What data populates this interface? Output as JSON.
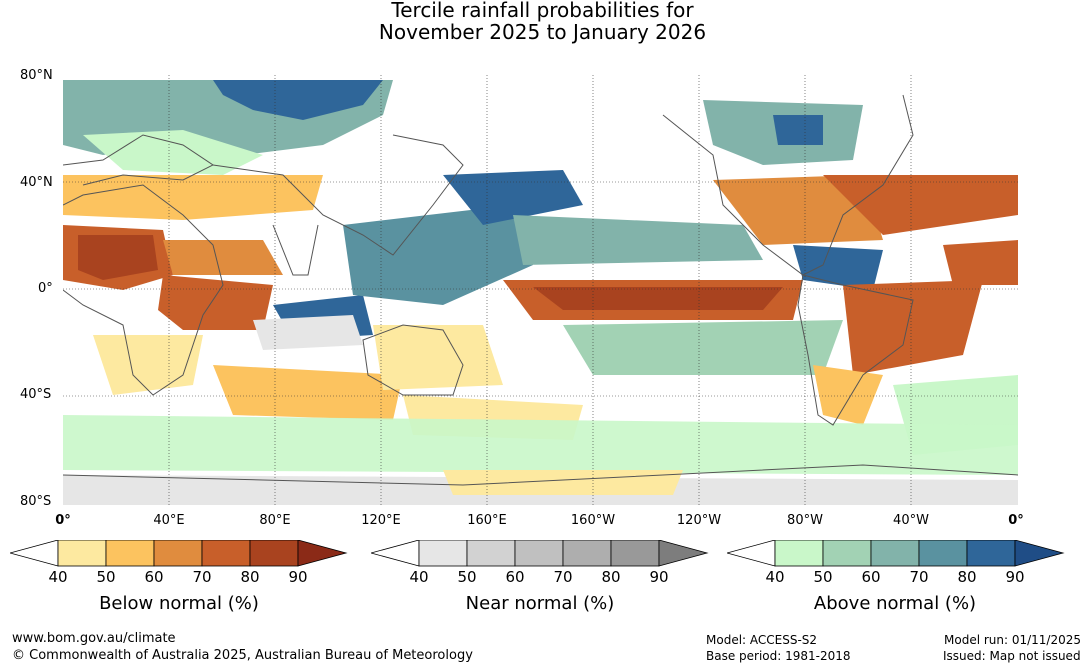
{
  "title": {
    "line1": "Tercile rainfall probabilities for",
    "line2": "November 2025 to January 2026"
  },
  "map": {
    "lat_labels": [
      "80°N",
      "40°N",
      "0°",
      "40°S",
      "80°S"
    ],
    "lon_labels": [
      "0°",
      "40°E",
      "80°E",
      "120°E",
      "160°E",
      "160°W",
      "120°W",
      "80°W",
      "40°W",
      "0°"
    ]
  },
  "colorbars": [
    {
      "title": "Below normal (%)",
      "ticks": [
        "40",
        "50",
        "60",
        "70",
        "80",
        "90"
      ],
      "colors": [
        "#ffffff",
        "#fde9a0",
        "#fcc35f",
        "#e08c3e",
        "#c85f2a",
        "#a9431f",
        "#8b2a17"
      ]
    },
    {
      "title": "Near normal (%)",
      "ticks": [
        "40",
        "50",
        "60",
        "70",
        "80",
        "90"
      ],
      "colors": [
        "#ffffff",
        "#e6e6e6",
        "#d2d2d2",
        "#c0c0c0",
        "#aeaeae",
        "#999999",
        "#7d7d7d"
      ]
    },
    {
      "title": "Above normal (%)",
      "ticks": [
        "40",
        "50",
        "60",
        "70",
        "80",
        "90"
      ],
      "colors": [
        "#ffffff",
        "#c9f7c9",
        "#a2d2b4",
        "#82b3aa",
        "#5a92a0",
        "#2f6699",
        "#1f4d86"
      ]
    }
  ],
  "footer": {
    "site": "www.bom.gov.au/climate",
    "copyright": "© Commonwealth of Australia 2025, Australian Bureau of Meteorology",
    "model": "Model: ACCESS-S2",
    "base_period": "Base period: 1981-2018",
    "model_run": "Model run: 01/11/2025",
    "issued": "Issued: Map not issued"
  }
}
